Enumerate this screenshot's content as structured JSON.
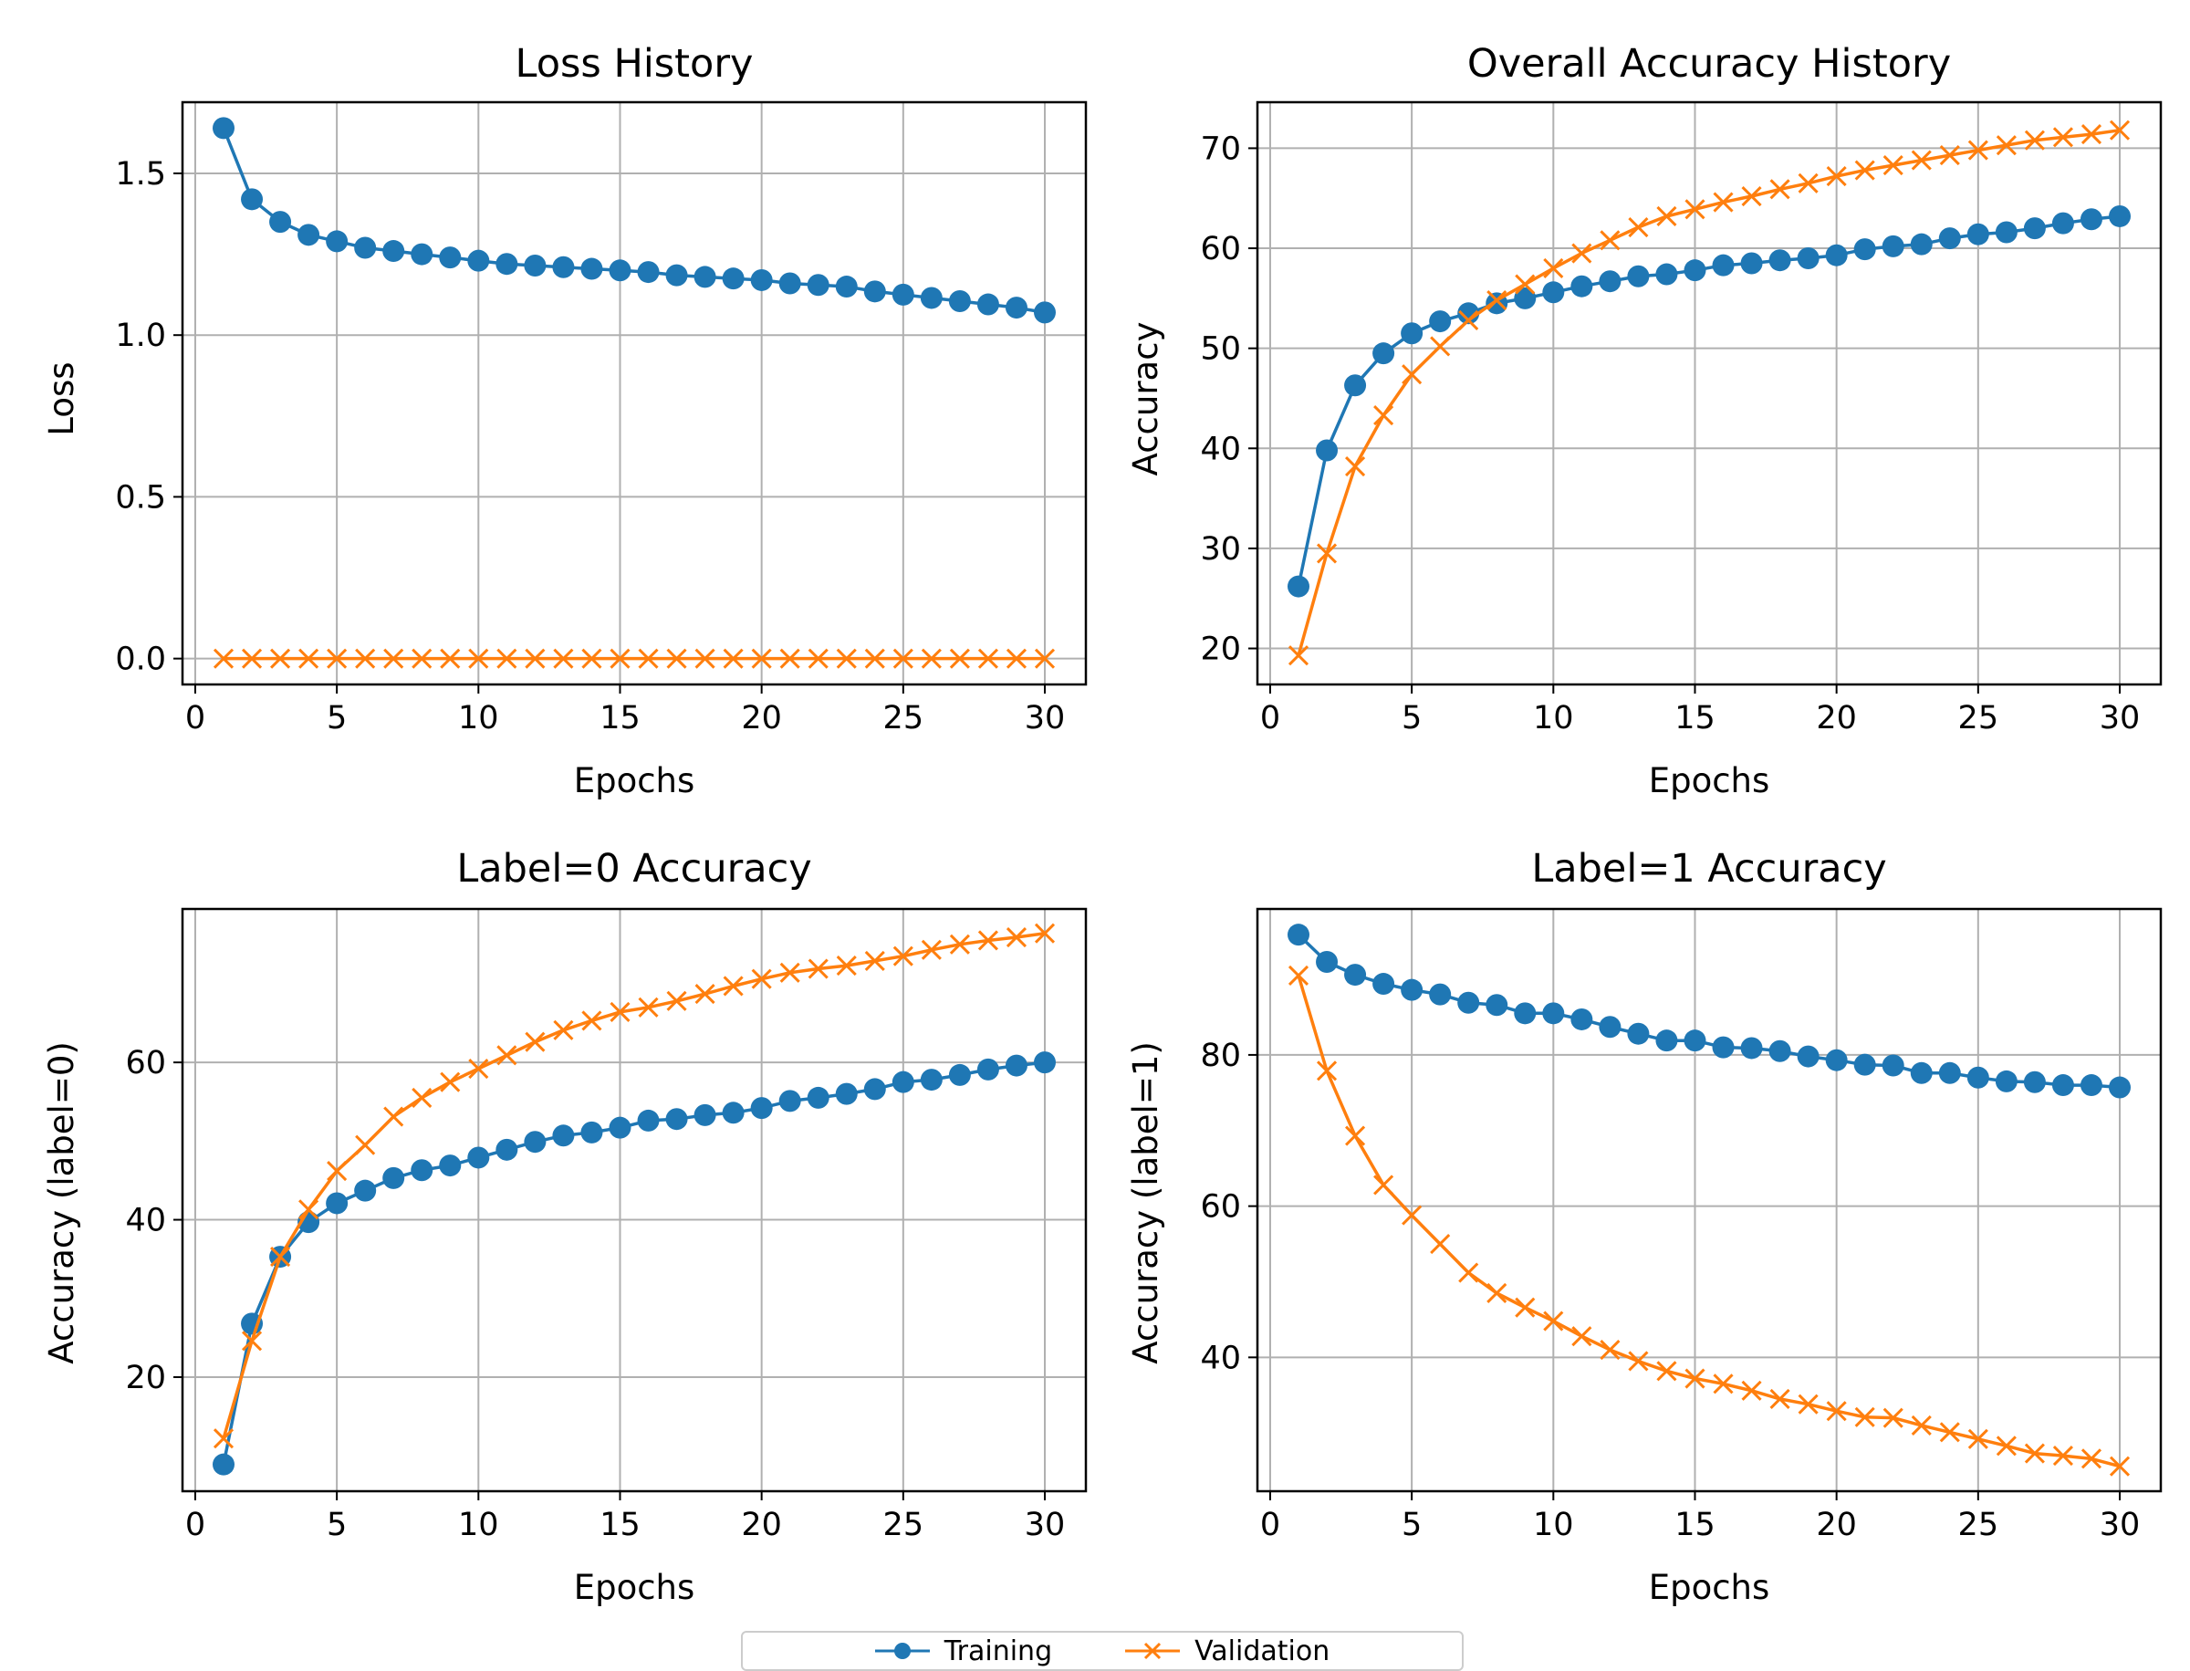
{
  "colors": {
    "series_a": "#1f77b4",
    "series_b": "#ff7f0e",
    "grid": "#b0b0b0",
    "axes": "#000000"
  },
  "chart_data": [
    {
      "type": "line",
      "title": "Loss History",
      "xlabel": "Epochs",
      "ylabel": "Loss",
      "grid": true,
      "xlim": [
        -0.45,
        31.45
      ],
      "ylim": [
        -0.08,
        1.72
      ],
      "xticks": [
        "0",
        "5",
        "10",
        "15",
        "20",
        "25",
        "30"
      ],
      "xtick_values": [
        0,
        5,
        10,
        15,
        20,
        25,
        30
      ],
      "yticks": [
        "0.0",
        "0.5",
        "1.0",
        "1.5"
      ],
      "ytick_values": [
        0,
        0.5,
        1.0,
        1.5
      ],
      "x": [
        1,
        2,
        3,
        4,
        5,
        6,
        7,
        8,
        9,
        10,
        11,
        12,
        13,
        14,
        15,
        16,
        17,
        18,
        19,
        20,
        21,
        22,
        23,
        24,
        25,
        26,
        27,
        28,
        29,
        30
      ],
      "series": [
        {
          "marker": "circle",
          "color": "#1f77b4",
          "values": [
            1.64,
            1.42,
            1.35,
            1.31,
            1.29,
            1.27,
            1.26,
            1.25,
            1.24,
            1.23,
            1.22,
            1.215,
            1.21,
            1.205,
            1.2,
            1.195,
            1.185,
            1.18,
            1.175,
            1.17,
            1.16,
            1.155,
            1.15,
            1.135,
            1.125,
            1.115,
            1.105,
            1.095,
            1.085,
            1.07
          ]
        },
        {
          "marker": "x",
          "color": "#ff7f0e",
          "values": [
            0,
            0,
            0,
            0,
            0,
            0,
            0,
            0,
            0,
            0,
            0,
            0,
            0,
            0,
            0,
            0,
            0,
            0,
            0,
            0,
            0,
            0,
            0,
            0,
            0,
            0,
            0,
            0,
            0,
            0
          ]
        }
      ]
    },
    {
      "type": "line",
      "title": "Overall Accuracy History",
      "xlabel": "Epochs",
      "ylabel": "Accuracy",
      "grid": true,
      "xlim": [
        -0.45,
        31.45
      ],
      "ylim": [
        16.4,
        74.6
      ],
      "xticks": [
        "0",
        "5",
        "10",
        "15",
        "20",
        "25",
        "30"
      ],
      "xtick_values": [
        0,
        5,
        10,
        15,
        20,
        25,
        30
      ],
      "yticks": [
        "20",
        "30",
        "40",
        "50",
        "60",
        "70"
      ],
      "ytick_values": [
        20,
        30,
        40,
        50,
        60,
        70
      ],
      "x": [
        1,
        2,
        3,
        4,
        5,
        6,
        7,
        8,
        9,
        10,
        11,
        12,
        13,
        14,
        15,
        16,
        17,
        18,
        19,
        20,
        21,
        22,
        23,
        24,
        25,
        26,
        27,
        28,
        29,
        30
      ],
      "series": [
        {
          "marker": "circle",
          "color": "#1f77b4",
          "values": [
            26.2,
            39.8,
            46.3,
            49.5,
            51.5,
            52.7,
            53.5,
            54.5,
            55.0,
            55.6,
            56.2,
            56.7,
            57.2,
            57.4,
            57.8,
            58.3,
            58.5,
            58.8,
            59.0,
            59.3,
            59.9,
            60.2,
            60.4,
            61.0,
            61.4,
            61.6,
            62.0,
            62.5,
            62.9,
            63.2
          ]
        },
        {
          "marker": "x",
          "color": "#ff7f0e",
          "values": [
            19.3,
            29.5,
            38.2,
            43.3,
            47.4,
            50.2,
            52.8,
            54.8,
            56.4,
            58.0,
            59.5,
            60.8,
            62.1,
            63.2,
            63.9,
            64.6,
            65.2,
            65.9,
            66.5,
            67.2,
            67.8,
            68.3,
            68.8,
            69.3,
            69.8,
            70.3,
            70.8,
            71.1,
            71.4,
            71.8
          ]
        }
      ]
    },
    {
      "type": "line",
      "title": "Label=0 Accuracy",
      "xlabel": "Epochs",
      "ylabel": "Accuracy (label=0)",
      "grid": true,
      "xlim": [
        -0.45,
        31.45
      ],
      "ylim": [
        5.5,
        79.5
      ],
      "xticks": [
        "0",
        "5",
        "10",
        "15",
        "20",
        "25",
        "30"
      ],
      "xtick_values": [
        0,
        5,
        10,
        15,
        20,
        25,
        30
      ],
      "yticks": [
        "20",
        "40",
        "60"
      ],
      "ytick_values": [
        20,
        40,
        60
      ],
      "x": [
        1,
        2,
        3,
        4,
        5,
        6,
        7,
        8,
        9,
        10,
        11,
        12,
        13,
        14,
        15,
        16,
        17,
        18,
        19,
        20,
        21,
        22,
        23,
        24,
        25,
        26,
        27,
        28,
        29,
        30
      ],
      "series": [
        {
          "marker": "circle",
          "color": "#1f77b4",
          "values": [
            8.9,
            26.8,
            35.3,
            39.7,
            42.1,
            43.7,
            45.3,
            46.3,
            46.9,
            47.9,
            48.9,
            49.9,
            50.7,
            51.1,
            51.7,
            52.6,
            52.8,
            53.3,
            53.6,
            54.2,
            55.1,
            55.5,
            56.0,
            56.6,
            57.5,
            57.8,
            58.4,
            59.1,
            59.6,
            60.0
          ]
        },
        {
          "marker": "x",
          "color": "#ff7f0e",
          "values": [
            12.2,
            24.6,
            35.3,
            41.3,
            46.2,
            49.5,
            53.1,
            55.5,
            57.5,
            59.2,
            60.9,
            62.6,
            64.1,
            65.3,
            66.4,
            67.0,
            67.8,
            68.7,
            69.7,
            70.6,
            71.4,
            71.9,
            72.3,
            72.9,
            73.5,
            74.3,
            75.0,
            75.5,
            75.9,
            76.4
          ]
        }
      ]
    },
    {
      "type": "line",
      "title": "Label=1 Accuracy",
      "xlabel": "Epochs",
      "ylabel": "Accuracy (label=1)",
      "grid": true,
      "xlim": [
        -0.45,
        31.45
      ],
      "ylim": [
        22.3,
        99.3
      ],
      "xticks": [
        "0",
        "5",
        "10",
        "15",
        "20",
        "25",
        "30"
      ],
      "xtick_values": [
        0,
        5,
        10,
        15,
        20,
        25,
        30
      ],
      "yticks": [
        "40",
        "60",
        "80"
      ],
      "ytick_values": [
        40,
        60,
        80
      ],
      "x": [
        1,
        2,
        3,
        4,
        5,
        6,
        7,
        8,
        9,
        10,
        11,
        12,
        13,
        14,
        15,
        16,
        17,
        18,
        19,
        20,
        21,
        22,
        23,
        24,
        25,
        26,
        27,
        28,
        29,
        30
      ],
      "series": [
        {
          "marker": "circle",
          "color": "#1f77b4",
          "values": [
            95.9,
            92.3,
            90.6,
            89.4,
            88.6,
            88.0,
            86.9,
            86.6,
            85.5,
            85.5,
            84.7,
            83.7,
            82.8,
            81.9,
            81.9,
            81.0,
            80.9,
            80.5,
            79.8,
            79.3,
            78.7,
            78.6,
            77.6,
            77.6,
            77.0,
            76.5,
            76.4,
            76.0,
            76.0,
            75.7
          ]
        },
        {
          "marker": "x",
          "color": "#ff7f0e",
          "values": [
            90.5,
            77.9,
            69.3,
            62.8,
            58.8,
            55.0,
            51.2,
            48.5,
            46.6,
            44.8,
            42.8,
            41.0,
            39.5,
            38.2,
            37.2,
            36.5,
            35.6,
            34.5,
            33.8,
            32.9,
            32.1,
            32.0,
            31.0,
            30.1,
            29.2,
            28.3,
            27.3,
            27.0,
            26.6,
            25.6
          ]
        }
      ]
    }
  ],
  "legend": {
    "label_a": "Training",
    "label_b": "Validation"
  }
}
